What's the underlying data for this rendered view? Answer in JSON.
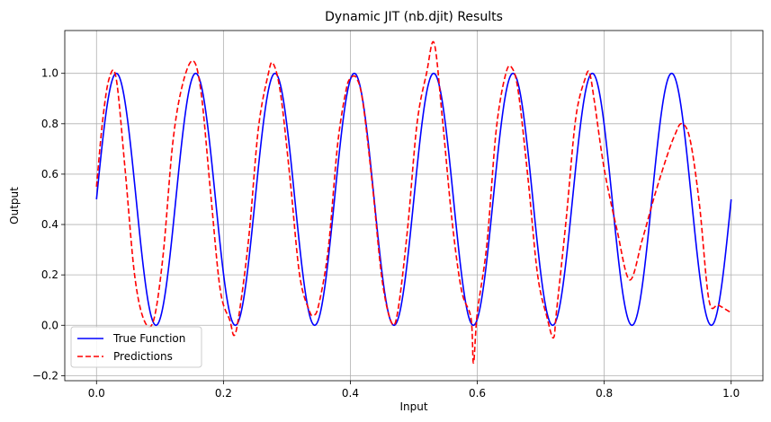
{
  "chart_data": {
    "type": "line",
    "title": "Dynamic JIT (nb.djit) Results",
    "xlabel": "Input",
    "ylabel": "Output",
    "xlim": [
      -0.05,
      1.05
    ],
    "ylim": [
      -0.22,
      1.17
    ],
    "xticks": [
      0.0,
      0.2,
      0.4,
      0.6,
      0.8,
      1.0
    ],
    "xtick_labels": [
      "0.0",
      "0.2",
      "0.4",
      "0.6",
      "0.8",
      "1.0"
    ],
    "yticks": [
      -0.2,
      0.0,
      0.2,
      0.4,
      0.6,
      0.8,
      1.0
    ],
    "ytick_labels": [
      "−0.2",
      "0.0",
      "0.2",
      "0.4",
      "0.6",
      "0.8",
      "1.0"
    ],
    "grid": true,
    "legend_position": "lower-left",
    "series": [
      {
        "name": "True Function",
        "color": "#0000ff",
        "style": "solid",
        "function": "0.5 + 0.5*sin(16*pi*x)",
        "x_range": [
          0,
          1
        ]
      },
      {
        "name": "Predictions",
        "color": "#ff0000",
        "style": "dashed",
        "x": [
          0.0,
          0.01,
          0.02,
          0.031,
          0.045,
          0.06,
          0.075,
          0.09,
          0.105,
          0.12,
          0.135,
          0.152,
          0.165,
          0.18,
          0.195,
          0.21,
          0.217,
          0.225,
          0.24,
          0.255,
          0.27,
          0.278,
          0.29,
          0.305,
          0.32,
          0.335,
          0.342,
          0.35,
          0.365,
          0.38,
          0.393,
          0.4,
          0.41,
          0.42,
          0.435,
          0.45,
          0.465,
          0.475,
          0.49,
          0.505,
          0.52,
          0.532,
          0.545,
          0.56,
          0.575,
          0.59,
          0.594,
          0.6,
          0.615,
          0.63,
          0.645,
          0.655,
          0.665,
          0.68,
          0.695,
          0.71,
          0.72,
          0.725,
          0.74,
          0.755,
          0.77,
          0.777,
          0.785,
          0.8,
          0.82,
          0.84,
          0.86,
          0.88,
          0.9,
          0.912,
          0.922,
          0.935,
          0.95,
          0.965,
          0.98,
          1.0
        ],
        "y": [
          0.55,
          0.82,
          0.98,
          0.98,
          0.62,
          0.2,
          0.02,
          0.02,
          0.28,
          0.72,
          0.95,
          1.05,
          0.92,
          0.52,
          0.14,
          0.02,
          -0.04,
          0.05,
          0.35,
          0.78,
          0.99,
          1.04,
          0.92,
          0.58,
          0.2,
          0.06,
          0.04,
          0.08,
          0.3,
          0.72,
          0.93,
          0.98,
          0.98,
          0.88,
          0.55,
          0.18,
          0.01,
          0.06,
          0.38,
          0.8,
          1.0,
          1.12,
          0.82,
          0.42,
          0.14,
          0.03,
          -0.15,
          0.05,
          0.32,
          0.78,
          1.0,
          1.02,
          0.92,
          0.58,
          0.2,
          0.03,
          -0.05,
          0.06,
          0.42,
          0.82,
          0.98,
          1.0,
          0.88,
          0.62,
          0.38,
          0.18,
          0.34,
          0.52,
          0.68,
          0.76,
          0.8,
          0.74,
          0.48,
          0.1,
          0.08,
          0.05
        ]
      }
    ]
  }
}
